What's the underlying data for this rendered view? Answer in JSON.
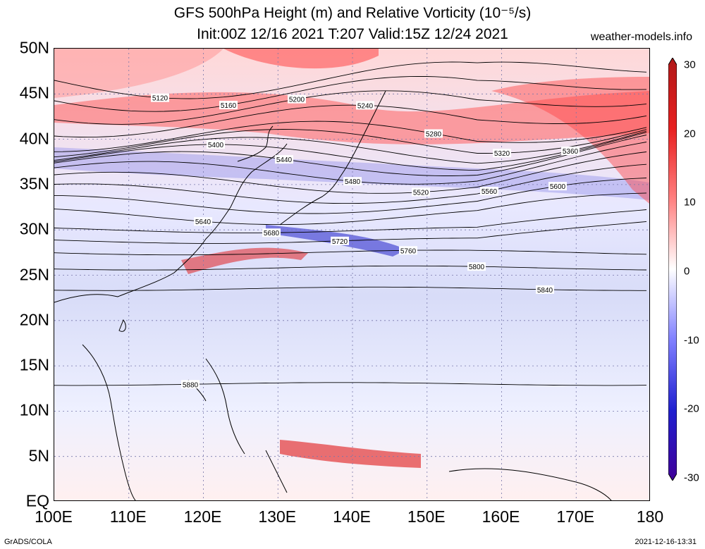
{
  "title_line1": "GFS 500hPa Height (m) and Relative Vorticity (10⁻⁵/s)",
  "title_line2": "Init:00Z 12/16 2021 T:207 Valid:15Z 12/24 2021",
  "site": "weather-models.info",
  "lat_labels": [
    "50N",
    "45N",
    "40N",
    "35N",
    "30N",
    "25N",
    "20N",
    "15N",
    "10N",
    "5N",
    "EQ"
  ],
  "lon_labels": [
    "100E",
    "110E",
    "120E",
    "130E",
    "140E",
    "150E",
    "160E",
    "170E",
    "180"
  ],
  "colorbar": {
    "ticks": [
      "30",
      "20",
      "10",
      "0",
      "-10",
      "-20",
      "-30"
    ],
    "colors": [
      "#b01818",
      "#e82020",
      "#ff8080",
      "#ffffff",
      "#8080ff",
      "#2020d0",
      "#400098"
    ]
  },
  "contours": [
    {
      "label": "5120",
      "lat": 46.5
    },
    {
      "label": "5160",
      "lat": 45.0
    },
    {
      "label": "5200",
      "lat": 43.5
    },
    {
      "label": "5240",
      "lat": 42.0
    },
    {
      "label": "5280",
      "lat": 40.3
    },
    {
      "label": "5320",
      "lat": 39.5
    },
    {
      "label": "5360",
      "lat": 38.7
    },
    {
      "label": "5400",
      "lat": 38.0
    },
    {
      "label": "5440",
      "lat": 37.3
    },
    {
      "label": "5480",
      "lat": 36.3
    },
    {
      "label": "5520",
      "lat": 35.2
    },
    {
      "label": "5560",
      "lat": 34.0
    },
    {
      "label": "5600",
      "lat": 32.8
    },
    {
      "label": "5640",
      "lat": 31.5
    },
    {
      "label": "5680",
      "lat": 30.0
    },
    {
      "label": "5720",
      "lat": 28.8
    },
    {
      "label": "5760",
      "lat": 27.5
    },
    {
      "label": "5800",
      "lat": 25.8
    },
    {
      "label": "5840",
      "lat": 23.5
    },
    {
      "label": "5880",
      "lat": 13.0
    }
  ],
  "credit_left": "GrADS/COLA",
  "credit_right": "2021-12-16-13:31"
}
